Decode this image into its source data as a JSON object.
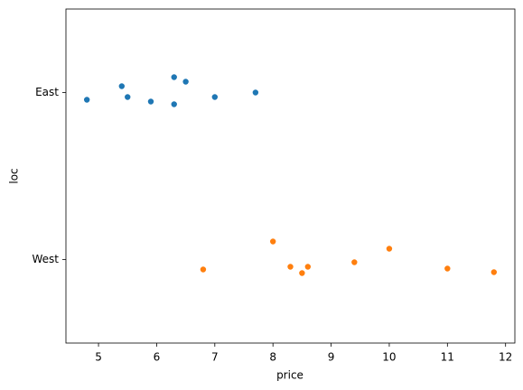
{
  "chart_data": {
    "type": "strip",
    "xlabel": "price",
    "ylabel": "loc",
    "categories": [
      "East",
      "West"
    ],
    "series": [
      {
        "color": "#1f77b4",
        "values": [
          4.8,
          5.4,
          5.5,
          5.9,
          6.3,
          6.3,
          6.5,
          7.0,
          7.7
        ]
      },
      {
        "color": "#ff7f0e",
        "values": [
          6.8,
          8.0,
          8.3,
          8.5,
          8.6,
          9.4,
          10.0,
          11.0,
          11.8
        ]
      }
    ],
    "xlim": [
      4.44,
      12.16
    ],
    "xticks": [
      5,
      6,
      7,
      8,
      9,
      10,
      11,
      12
    ],
    "grid": false
  }
}
